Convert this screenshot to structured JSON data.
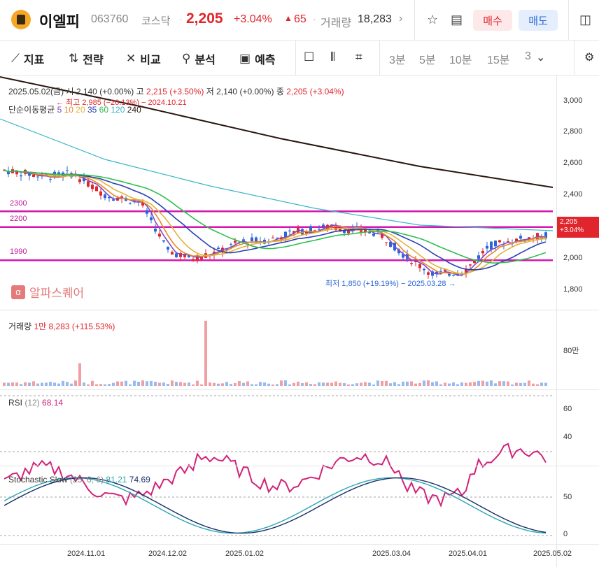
{
  "header": {
    "name": "이엘피",
    "code": "063760",
    "market": "코스닥",
    "price": "2,205",
    "change_pct": "+3.04%",
    "change_arrow": "▲",
    "change_abs": "65",
    "volume_label": "거래량",
    "volume": "18,283",
    "buy_label": "매수",
    "sell_label": "매도"
  },
  "toolbar": {
    "indicator": "지표",
    "strategy": "전략",
    "compare": "비교",
    "analysis": "분석",
    "predict": "예측",
    "intervals": [
      "3분",
      "5분",
      "10분",
      "15분",
      "3"
    ]
  },
  "ohlc": {
    "date": "2025.05.02(금)",
    "open_label": "시",
    "open": "2,140 (+0.00%)",
    "high_label": "고",
    "high": "2,215 (+3.50%)",
    "low_label": "저",
    "low": "2,140 (+0.00%)",
    "close_label": "종",
    "close": "2,205 (+3.04%)"
  },
  "ma": {
    "label": "단순이동평균",
    "periods": [
      "5",
      "10",
      "20",
      "35",
      "60",
      "120",
      "240"
    ],
    "colors": [
      "#7b4dc6",
      "#e8872a",
      "#e0b43a",
      "#2a3fb3",
      "#2fbf4f",
      "#3ab5c9",
      "#2a1410"
    ]
  },
  "annotations": {
    "high": "← 최고 2,985 (−26.13%) − 2024.10.21",
    "low": "최저 1,850 (+19.19%) − 2025.03.28 →"
  },
  "lines": [
    {
      "label": "2300",
      "value": 2300
    },
    {
      "label": "2200",
      "value": 2200
    },
    {
      "label": "1990",
      "value": 1990
    }
  ],
  "price_tag": {
    "price": "2,205",
    "pct": "+3.04%"
  },
  "watermark": "알파스퀘어",
  "price_axis": [
    "3,000",
    "2,800",
    "2,600",
    "2,400",
    "2,000",
    "1,800"
  ],
  "volume_pane": {
    "label": "거래량",
    "value": "1만 8,283 (+115.53%)",
    "axis": "80만"
  },
  "rsi_pane": {
    "label": "RSI",
    "param": "(12)",
    "value": "68.14",
    "axis": [
      "60",
      "40"
    ]
  },
  "stoch_pane": {
    "label": "Stochastic Slow",
    "param": "(25, 6, 6)",
    "k": "81.21",
    "d": "74.69",
    "axis": [
      "50",
      "0"
    ]
  },
  "date_axis": [
    "2024.11.01",
    "2024.12.02",
    "2025.01.02",
    "2025.03.04",
    "2025.04.01",
    "2025.05.02"
  ],
  "colors": {
    "up": "#e0262c",
    "down": "#2a66d9",
    "line_magenta": "#d417b0",
    "rsi": "#d1237a",
    "stoch_k": "#2aa6b0",
    "stoch_d": "#1a2f6a"
  }
}
